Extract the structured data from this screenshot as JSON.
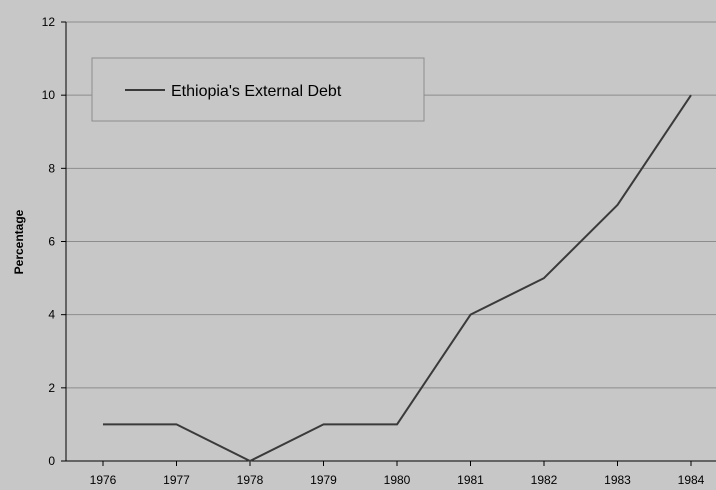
{
  "chart_data": {
    "type": "line",
    "title": "",
    "xlabel": "",
    "ylabel": "Percentage",
    "categories": [
      "1976",
      "1977",
      "1978",
      "1979",
      "1980",
      "1981",
      "1982",
      "1983",
      "1984"
    ],
    "series": [
      {
        "name": "Ethiopia's External Debt",
        "values": [
          1,
          1,
          0,
          1,
          1,
          4,
          5,
          7,
          10
        ]
      }
    ],
    "ylim": [
      0,
      12
    ],
    "yticks": [
      0,
      2,
      4,
      6,
      8,
      10,
      12
    ],
    "grid": "horizontal",
    "legend_position": "top-left",
    "colors": {
      "background": "#c7c7c7",
      "line": "#3a3a3a",
      "grid": "#8c8c8c",
      "axis": "#000000"
    }
  }
}
